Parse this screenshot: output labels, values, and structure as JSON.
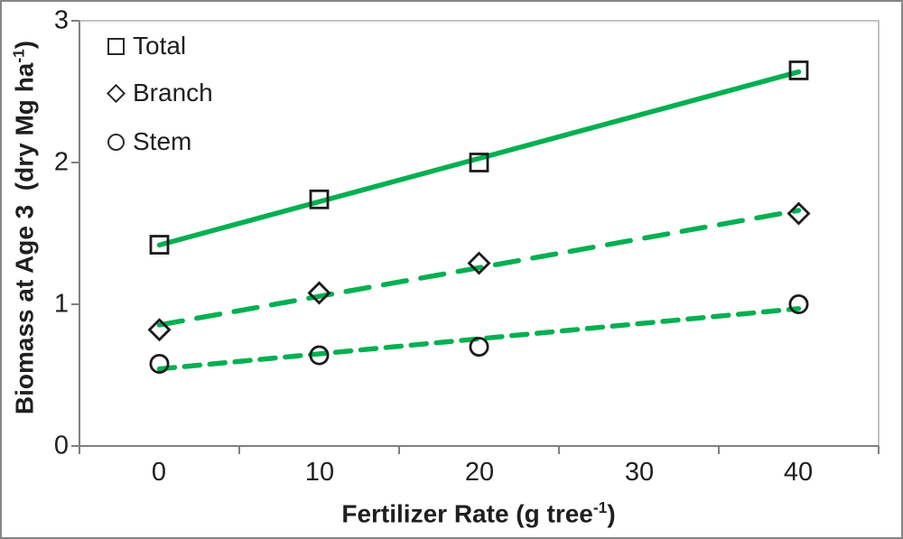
{
  "chart_data": {
    "type": "scatter",
    "title": "",
    "xlabel": "Fertilizer Rate (g tree⁻¹)",
    "ylabel": "Biomass at Age 3  (dry Mg ha⁻¹)",
    "xlabel_parts": {
      "pre": "Fertilizer Rate (g tree",
      "sup": "-1",
      "post": ")"
    },
    "ylabel_parts": {
      "pre": "Biomass at Age 3  (dry Mg ha",
      "sup": "-1",
      "post": ")"
    },
    "x": [
      0,
      10,
      20,
      40
    ],
    "series": [
      {
        "name": "Total",
        "marker": "square",
        "line_style": "solid",
        "values": [
          1.42,
          1.74,
          2.0,
          2.65
        ]
      },
      {
        "name": "Branch",
        "marker": "diamond",
        "line_style": "dashed-long",
        "values": [
          0.82,
          1.08,
          1.29,
          1.64
        ]
      },
      {
        "name": "Stem",
        "marker": "circle",
        "line_style": "dashed-short",
        "values": [
          0.58,
          0.64,
          0.7,
          1.0
        ]
      }
    ],
    "trendlines": "linear least-squares per series, drawn from x=0 to x=40",
    "x_ticks": [
      0,
      10,
      20,
      30,
      40
    ],
    "y_ticks": [
      0,
      1,
      2,
      3
    ],
    "x_tick_boundaries": [
      -5,
      5,
      15,
      25,
      35,
      45
    ],
    "xlim": [
      -5,
      45
    ],
    "ylim": [
      0,
      3
    ],
    "grid": false,
    "legend_position": "top-left-inside",
    "colors": {
      "line_green": "#00B050",
      "marker_stroke": "#1b1b1b",
      "axis_gray": "#808080",
      "plot_border_gray": "#b0b0b0",
      "text": "#1f1f1f",
      "frame_border": "#878787",
      "background": "#ffffff"
    }
  }
}
